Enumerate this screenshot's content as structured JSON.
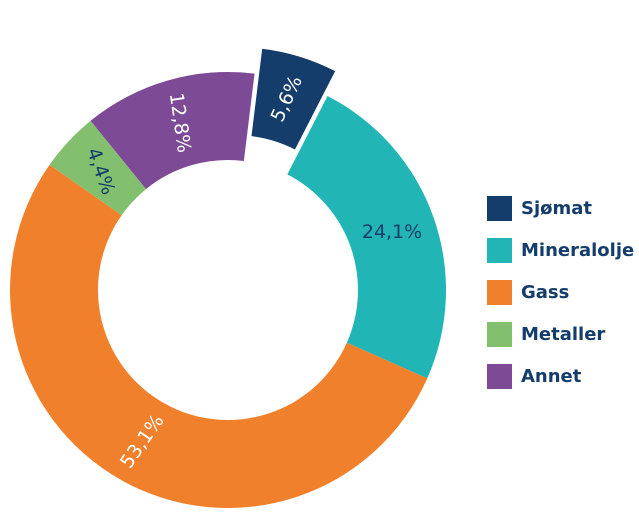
{
  "chart_data": {
    "type": "pie",
    "variant": "donut",
    "exploded": "Sjømat",
    "legend_position": "right",
    "slices": [
      {
        "label": "Sjømat",
        "value": 5.6,
        "display": "5,6%",
        "color": "#143d6b",
        "text_color": "#ffffff"
      },
      {
        "label": "Mineralolje",
        "value": 24.1,
        "display": "24,1%",
        "color": "#22b5b5",
        "text_color": "#143d6b"
      },
      {
        "label": "Gass",
        "value": 53.1,
        "display": "53,1%",
        "color": "#f0802b",
        "text_color": "#ffffff"
      },
      {
        "label": "Metaller",
        "value": 4.4,
        "display": "4,4%",
        "color": "#82c06f",
        "text_color": "#143d6b"
      },
      {
        "label": "Annet",
        "value": 12.8,
        "display": "12,8%",
        "color": "#7d4a96",
        "text_color": "#ffffff"
      }
    ]
  },
  "legend": {
    "text_color": "#143d6b",
    "items": [
      "Sjømat",
      "Mineralolje",
      "Gass",
      "Metaller",
      "Annet"
    ]
  }
}
